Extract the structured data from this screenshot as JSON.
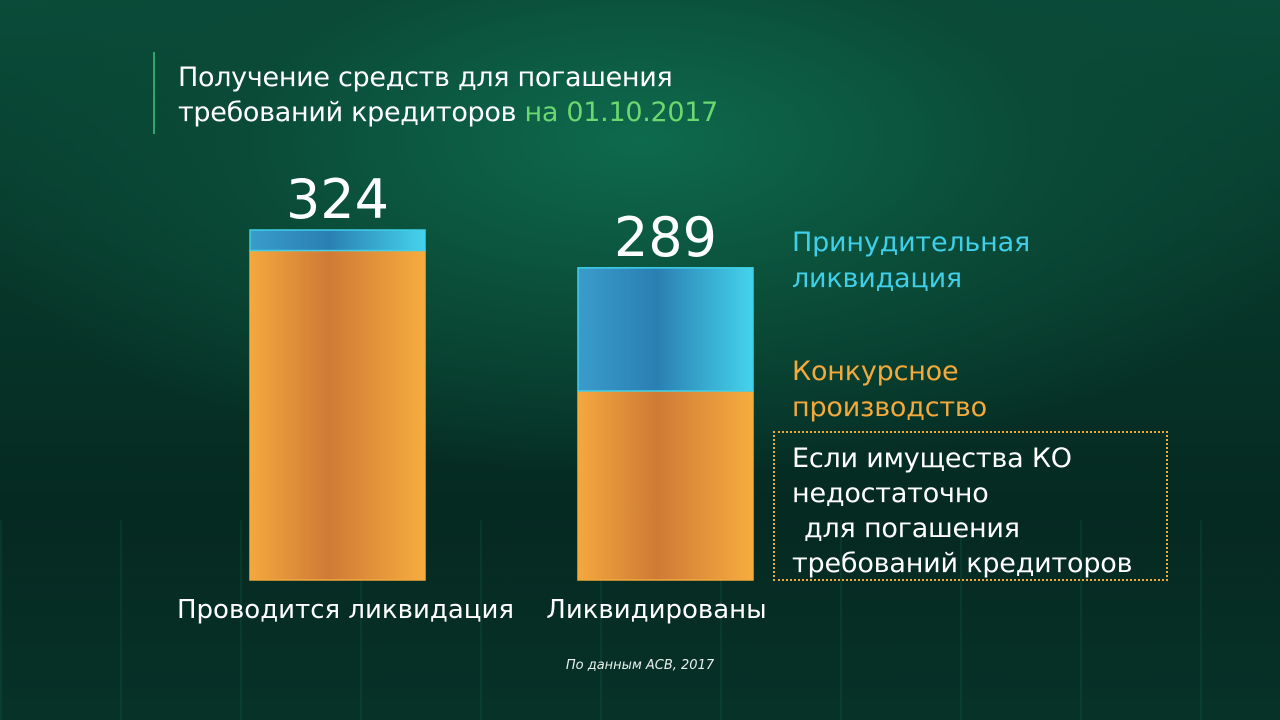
{
  "header": {
    "title_line1": "Получение средств для погашения",
    "title_line2": "требований кредиторов",
    "title_date": "на 01.10.2017"
  },
  "colors": {
    "accent_green": "#6cd86f",
    "forced_liquidation": "#3fcfe8",
    "bankruptcy": "#f3a93c"
  },
  "chart_data": {
    "type": "bar",
    "stacked": true,
    "categories": [
      "Проводится ликвидация",
      "Ликвидированы"
    ],
    "totals": [
      324,
      289
    ],
    "series": [
      {
        "name": "Конкурсное производство",
        "values": [
          305,
          175
        ]
      },
      {
        "name": "Принудительная ликвидация",
        "values": [
          19,
          114
        ]
      }
    ],
    "legend_placement": "right",
    "grid": false
  },
  "legend": {
    "forced_line1": "Принудительная",
    "forced_line2": "ликвидация",
    "bankruptcy_line1": "Конкурсное",
    "bankruptcy_line2": "производство"
  },
  "note": {
    "line1": "Если имущества КО",
    "line2": "недостаточно",
    "line3": "для погашения",
    "line4": "требований кредиторов"
  },
  "source": "По данным АСВ, 2017"
}
